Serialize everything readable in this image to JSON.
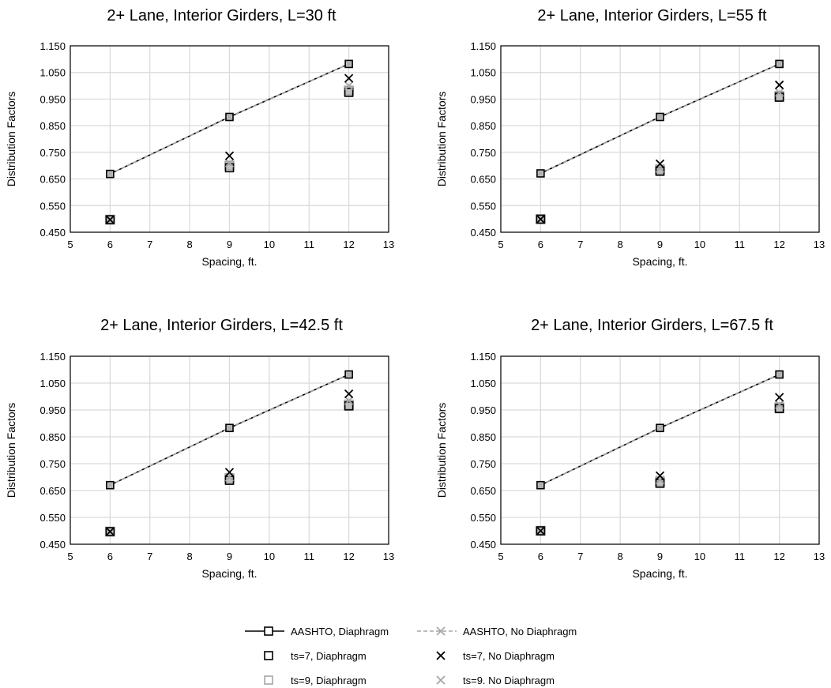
{
  "chart_data": [
    {
      "type": "line",
      "title": "2+ Lane, Interior Girders, L=30 ft",
      "xlabel": "Spacing, ft.",
      "ylabel": "Distribution Factors",
      "xlim": [
        5,
        13
      ],
      "ylim": [
        0.45,
        1.15
      ],
      "xticks": [
        "5",
        "6",
        "7",
        "8",
        "9",
        "10",
        "11",
        "12",
        "13"
      ],
      "yticks": [
        "0.450",
        "0.550",
        "0.650",
        "0.750",
        "0.850",
        "0.950",
        "1.050",
        "1.150"
      ],
      "grid": true,
      "x": [
        6,
        9,
        12
      ],
      "series": [
        {
          "name": "AASHTO, Diaphragm",
          "values": [
            0.669,
            0.883,
            1.082
          ]
        },
        {
          "name": "AASHTO, No Diaphragm",
          "values": [
            0.669,
            0.883,
            1.082
          ]
        },
        {
          "name": "ts=7, Diaphragm",
          "values": [
            0.497,
            0.692,
            0.975
          ]
        },
        {
          "name": "ts=7, No Diaphragm",
          "values": [
            0.497,
            0.737,
            1.028
          ]
        },
        {
          "name": "ts=9, Diaphragm",
          "values": [
            0.497,
            0.7,
            0.982
          ]
        },
        {
          "name": "ts=9. No Diaphragm",
          "values": [
            0.497,
            0.71,
            1.0
          ]
        }
      ]
    },
    {
      "type": "line",
      "title": "2+ Lane, Interior Girders, L=55 ft",
      "xlabel": "Spacing, ft.",
      "ylabel": "Distribution Factors",
      "xlim": [
        5,
        13
      ],
      "ylim": [
        0.45,
        1.15
      ],
      "xticks": [
        "5",
        "6",
        "7",
        "8",
        "9",
        "10",
        "11",
        "12",
        "13"
      ],
      "yticks": [
        "0.450",
        "0.550",
        "0.650",
        "0.750",
        "0.850",
        "0.950",
        "1.050",
        "1.150"
      ],
      "grid": true,
      "x": [
        6,
        9,
        12
      ],
      "series": [
        {
          "name": "AASHTO, Diaphragm",
          "values": [
            0.671,
            0.883,
            1.082
          ]
        },
        {
          "name": "AASHTO, No Diaphragm",
          "values": [
            0.671,
            0.883,
            1.082
          ]
        },
        {
          "name": "ts=7, Diaphragm",
          "values": [
            0.499,
            0.679,
            0.957
          ]
        },
        {
          "name": "ts=7, No Diaphragm",
          "values": [
            0.499,
            0.707,
            1.003
          ]
        },
        {
          "name": "ts=9, Diaphragm",
          "values": [
            0.499,
            0.685,
            0.962
          ]
        },
        {
          "name": "ts=9. No Diaphragm",
          "values": [
            0.499,
            0.69,
            0.975
          ]
        }
      ]
    },
    {
      "type": "line",
      "title": "2+ Lane, Interior Girders, L=42.5 ft",
      "xlabel": "Spacing, ft.",
      "ylabel": "Distribution Factors",
      "xlim": [
        5,
        13
      ],
      "ylim": [
        0.45,
        1.15
      ],
      "xticks": [
        "5",
        "6",
        "7",
        "8",
        "9",
        "10",
        "11",
        "12",
        "13"
      ],
      "yticks": [
        "0.450",
        "0.550",
        "0.650",
        "0.750",
        "0.850",
        "0.950",
        "1.050",
        "1.150"
      ],
      "grid": true,
      "x": [
        6,
        9,
        12
      ],
      "series": [
        {
          "name": "AASHTO, Diaphragm",
          "values": [
            0.67,
            0.883,
            1.082
          ]
        },
        {
          "name": "AASHTO, No Diaphragm",
          "values": [
            0.67,
            0.883,
            1.082
          ]
        },
        {
          "name": "ts=7, Diaphragm",
          "values": [
            0.497,
            0.688,
            0.965
          ]
        },
        {
          "name": "ts=7, No Diaphragm",
          "values": [
            0.497,
            0.718,
            1.01
          ]
        },
        {
          "name": "ts=9, Diaphragm",
          "values": [
            0.497,
            0.695,
            0.97
          ]
        },
        {
          "name": "ts=9. No Diaphragm",
          "values": [
            0.497,
            0.7,
            0.985
          ]
        }
      ]
    },
    {
      "type": "line",
      "title": "2+ Lane, Interior Girders, L=67.5 ft",
      "xlabel": "Spacing, ft.",
      "ylabel": "Distribution Factors",
      "xlim": [
        5,
        13
      ],
      "ylim": [
        0.45,
        1.15
      ],
      "xticks": [
        "5",
        "6",
        "7",
        "8",
        "9",
        "10",
        "11",
        "12",
        "13"
      ],
      "yticks": [
        "0.450",
        "0.550",
        "0.650",
        "0.750",
        "0.850",
        "0.950",
        "1.050",
        "1.150"
      ],
      "grid": true,
      "x": [
        6,
        9,
        12
      ],
      "series": [
        {
          "name": "AASHTO, Diaphragm",
          "values": [
            0.67,
            0.883,
            1.082
          ]
        },
        {
          "name": "AASHTO, No Diaphragm",
          "values": [
            0.67,
            0.883,
            1.082
          ]
        },
        {
          "name": "ts=7, Diaphragm",
          "values": [
            0.5,
            0.677,
            0.955
          ]
        },
        {
          "name": "ts=7, No Diaphragm",
          "values": [
            0.5,
            0.705,
            0.997
          ]
        },
        {
          "name": "ts=9, Diaphragm",
          "values": [
            0.5,
            0.683,
            0.96
          ]
        },
        {
          "name": "ts=9. No Diaphragm",
          "values": [
            0.5,
            0.69,
            0.97
          ]
        }
      ]
    }
  ],
  "legend": {
    "items": [
      {
        "label": "AASHTO, Diaphragm",
        "icon": "line-square-marker-icon",
        "color": "#000000"
      },
      {
        "label": "AASHTO, No Diaphragm",
        "icon": "dashed-line-x-marker-icon",
        "color": "#a6a6a6"
      },
      {
        "label": "ts=7, Diaphragm",
        "icon": "square-marker-icon",
        "color": "#000000"
      },
      {
        "label": "ts=7, No Diaphragm",
        "icon": "x-marker-icon",
        "color": "#000000"
      },
      {
        "label": "ts=9, Diaphragm",
        "icon": "square-marker-icon",
        "color": "#a6a6a6"
      },
      {
        "label": "ts=9. No Diaphragm",
        "icon": "x-marker-icon",
        "color": "#a6a6a6"
      }
    ]
  },
  "colors": {
    "grid": "#d9d9d9",
    "black": "#000000",
    "gray": "#a6a6a6",
    "square_fill": "#bfbfbf"
  }
}
